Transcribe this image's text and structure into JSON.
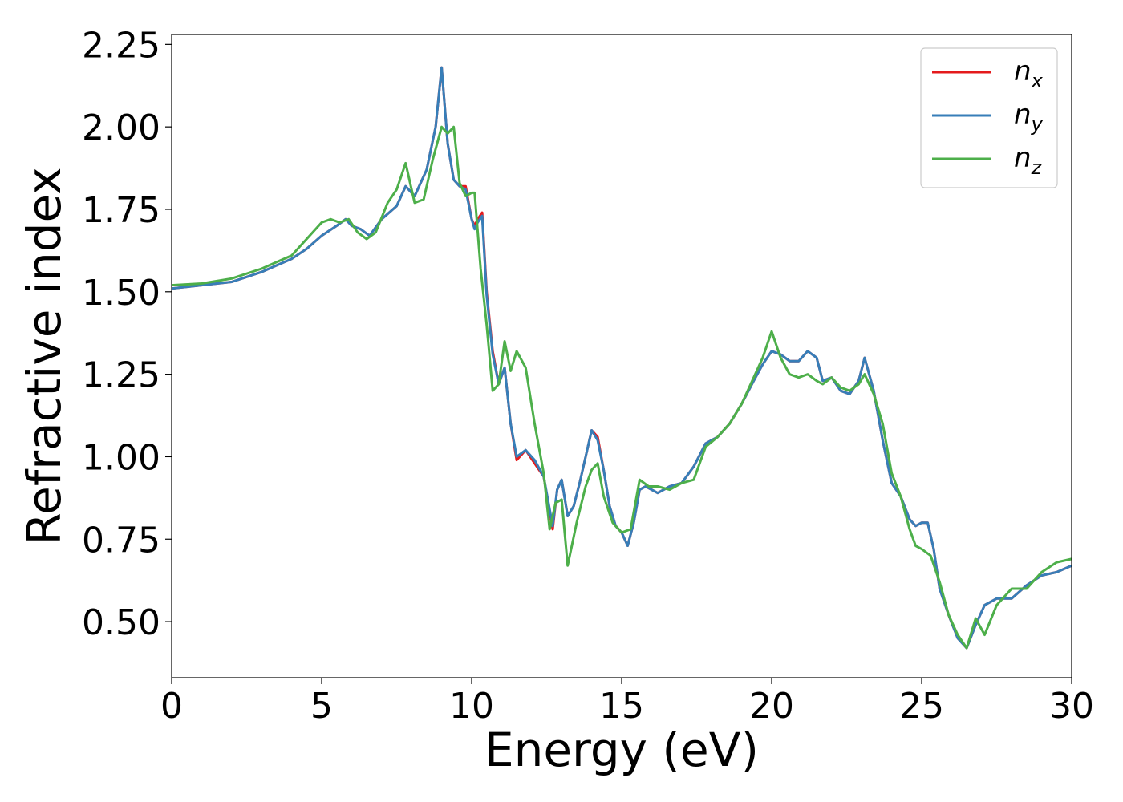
{
  "chart_data": {
    "type": "line",
    "xlabel": "Energy (eV)",
    "ylabel": "Refractive index",
    "xlim": [
      0,
      30
    ],
    "ylim": [
      0.33,
      2.28
    ],
    "xticks": [
      "0",
      "5",
      "10",
      "15",
      "20",
      "25",
      "30"
    ],
    "yticks": [
      "0.50",
      "0.75",
      "1.00",
      "1.25",
      "1.50",
      "1.75",
      "2.00",
      "2.25"
    ],
    "grid": false,
    "legend_position": "top-right",
    "series": [
      {
        "name": "n_x",
        "label_base": "n",
        "label_sub": "x",
        "color": "#e41a1c",
        "x": [
          0,
          1,
          2,
          2.5,
          3,
          3.5,
          4,
          4.5,
          5,
          5.5,
          5.8,
          6,
          6.3,
          6.6,
          7,
          7.5,
          7.8,
          8.1,
          8.5,
          8.8,
          9.0,
          9.2,
          9.4,
          9.6,
          9.8,
          10.0,
          10.1,
          10.2,
          10.35,
          10.5,
          10.7,
          10.9,
          11.1,
          11.3,
          11.5,
          11.8,
          12.1,
          12.4,
          12.7,
          12.85,
          13.0,
          13.2,
          13.4,
          13.6,
          13.8,
          14.0,
          14.2,
          14.4,
          14.6,
          14.8,
          15.0,
          15.2,
          15.4,
          15.6,
          15.8,
          16.2,
          16.6,
          17.0,
          17.4,
          17.8,
          18.2,
          18.6,
          19.0,
          19.4,
          19.7,
          20.0,
          20.3,
          20.6,
          20.9,
          21.2,
          21.5,
          21.7,
          22.0,
          22.3,
          22.6,
          22.9,
          23.1,
          23.4,
          23.7,
          24.0,
          24.3,
          24.6,
          24.8,
          25.0,
          25.2,
          25.4,
          25.6,
          25.9,
          26.2,
          26.5,
          26.8,
          27.1,
          27.5,
          28.0,
          28.5,
          29.0,
          29.5,
          30.0
        ],
        "values": [
          1.51,
          1.52,
          1.53,
          1.545,
          1.56,
          1.58,
          1.6,
          1.63,
          1.67,
          1.7,
          1.72,
          1.7,
          1.69,
          1.67,
          1.72,
          1.76,
          1.82,
          1.79,
          1.87,
          2.0,
          2.18,
          1.95,
          1.84,
          1.82,
          1.82,
          1.72,
          1.7,
          1.72,
          1.74,
          1.5,
          1.32,
          1.22,
          1.27,
          1.1,
          0.99,
          1.02,
          0.98,
          0.94,
          0.78,
          0.9,
          0.93,
          0.82,
          0.85,
          0.92,
          1.0,
          1.08,
          1.06,
          0.96,
          0.85,
          0.79,
          0.77,
          0.73,
          0.8,
          0.9,
          0.91,
          0.89,
          0.91,
          0.92,
          0.97,
          1.04,
          1.06,
          1.1,
          1.16,
          1.23,
          1.28,
          1.32,
          1.31,
          1.29,
          1.29,
          1.32,
          1.3,
          1.23,
          1.24,
          1.2,
          1.19,
          1.23,
          1.3,
          1.2,
          1.05,
          0.92,
          0.88,
          0.81,
          0.79,
          0.8,
          0.8,
          0.72,
          0.6,
          0.52,
          0.45,
          0.42,
          0.49,
          0.55,
          0.57,
          0.57,
          0.61,
          0.64,
          0.65,
          0.67
        ]
      },
      {
        "name": "n_y",
        "label_base": "n",
        "label_sub": "y",
        "color": "#377eb8",
        "x": [
          0,
          1,
          2,
          2.5,
          3,
          3.5,
          4,
          4.5,
          5,
          5.5,
          5.8,
          6,
          6.3,
          6.6,
          7,
          7.5,
          7.8,
          8.1,
          8.5,
          8.8,
          9.0,
          9.2,
          9.4,
          9.6,
          9.8,
          10.0,
          10.1,
          10.2,
          10.35,
          10.5,
          10.7,
          10.9,
          11.1,
          11.3,
          11.5,
          11.8,
          12.1,
          12.4,
          12.7,
          12.85,
          13.0,
          13.2,
          13.4,
          13.6,
          13.8,
          14.0,
          14.2,
          14.4,
          14.6,
          14.8,
          15.0,
          15.2,
          15.4,
          15.6,
          15.8,
          16.2,
          16.6,
          17.0,
          17.4,
          17.8,
          18.2,
          18.6,
          19.0,
          19.4,
          19.7,
          20.0,
          20.3,
          20.6,
          20.9,
          21.2,
          21.5,
          21.7,
          22.0,
          22.3,
          22.6,
          22.9,
          23.1,
          23.4,
          23.7,
          24.0,
          24.3,
          24.6,
          24.8,
          25.0,
          25.2,
          25.4,
          25.6,
          25.9,
          26.2,
          26.5,
          26.8,
          27.1,
          27.5,
          28.0,
          28.5,
          29.0,
          29.5,
          30.0
        ],
        "values": [
          1.51,
          1.52,
          1.53,
          1.545,
          1.56,
          1.58,
          1.6,
          1.63,
          1.67,
          1.7,
          1.72,
          1.7,
          1.69,
          1.67,
          1.72,
          1.76,
          1.82,
          1.79,
          1.87,
          2.0,
          2.18,
          1.95,
          1.84,
          1.82,
          1.81,
          1.72,
          1.69,
          1.71,
          1.73,
          1.49,
          1.31,
          1.22,
          1.27,
          1.1,
          1.0,
          1.02,
          0.99,
          0.94,
          0.79,
          0.9,
          0.93,
          0.82,
          0.85,
          0.92,
          1.0,
          1.08,
          1.05,
          0.96,
          0.85,
          0.79,
          0.77,
          0.73,
          0.8,
          0.9,
          0.91,
          0.89,
          0.91,
          0.92,
          0.97,
          1.04,
          1.06,
          1.1,
          1.16,
          1.23,
          1.28,
          1.32,
          1.31,
          1.29,
          1.29,
          1.32,
          1.3,
          1.23,
          1.24,
          1.2,
          1.19,
          1.23,
          1.3,
          1.2,
          1.05,
          0.92,
          0.88,
          0.81,
          0.79,
          0.8,
          0.8,
          0.72,
          0.6,
          0.52,
          0.45,
          0.42,
          0.49,
          0.55,
          0.57,
          0.57,
          0.61,
          0.64,
          0.65,
          0.67
        ]
      },
      {
        "name": "n_z",
        "label_base": "n",
        "label_sub": "z",
        "color": "#4daf4a",
        "x": [
          0,
          1,
          2,
          3,
          3.5,
          4,
          4.5,
          5,
          5.3,
          5.6,
          5.9,
          6.2,
          6.5,
          6.8,
          7.2,
          7.5,
          7.8,
          8.1,
          8.4,
          8.7,
          9.0,
          9.2,
          9.4,
          9.6,
          9.8,
          10.0,
          10.1,
          10.3,
          10.5,
          10.7,
          10.9,
          11.1,
          11.3,
          11.5,
          11.8,
          12.1,
          12.4,
          12.6,
          12.8,
          13.0,
          13.2,
          13.5,
          13.8,
          14.0,
          14.2,
          14.4,
          14.7,
          15.0,
          15.3,
          15.6,
          15.9,
          16.2,
          16.6,
          17.0,
          17.4,
          17.8,
          18.2,
          18.6,
          19.0,
          19.4,
          19.7,
          20.0,
          20.3,
          20.6,
          20.9,
          21.2,
          21.5,
          21.7,
          22.0,
          22.3,
          22.6,
          22.9,
          23.1,
          23.4,
          23.7,
          24.0,
          24.3,
          24.6,
          24.8,
          25.0,
          25.3,
          25.6,
          25.9,
          26.2,
          26.5,
          26.8,
          27.1,
          27.5,
          28.0,
          28.5,
          29.0,
          29.5,
          30.0
        ],
        "values": [
          1.52,
          1.525,
          1.54,
          1.57,
          1.59,
          1.61,
          1.66,
          1.71,
          1.72,
          1.71,
          1.72,
          1.68,
          1.66,
          1.68,
          1.77,
          1.81,
          1.89,
          1.77,
          1.78,
          1.9,
          2.0,
          1.98,
          2.0,
          1.83,
          1.79,
          1.8,
          1.8,
          1.57,
          1.4,
          1.2,
          1.22,
          1.35,
          1.26,
          1.32,
          1.27,
          1.1,
          0.95,
          0.78,
          0.86,
          0.87,
          0.67,
          0.8,
          0.91,
          0.96,
          0.98,
          0.88,
          0.8,
          0.77,
          0.78,
          0.93,
          0.91,
          0.91,
          0.9,
          0.92,
          0.93,
          1.03,
          1.06,
          1.1,
          1.16,
          1.24,
          1.3,
          1.38,
          1.3,
          1.25,
          1.24,
          1.25,
          1.23,
          1.22,
          1.24,
          1.21,
          1.2,
          1.22,
          1.25,
          1.19,
          1.1,
          0.95,
          0.88,
          0.78,
          0.73,
          0.72,
          0.7,
          0.62,
          0.52,
          0.46,
          0.42,
          0.51,
          0.46,
          0.55,
          0.6,
          0.6,
          0.65,
          0.68,
          0.69
        ]
      }
    ]
  }
}
